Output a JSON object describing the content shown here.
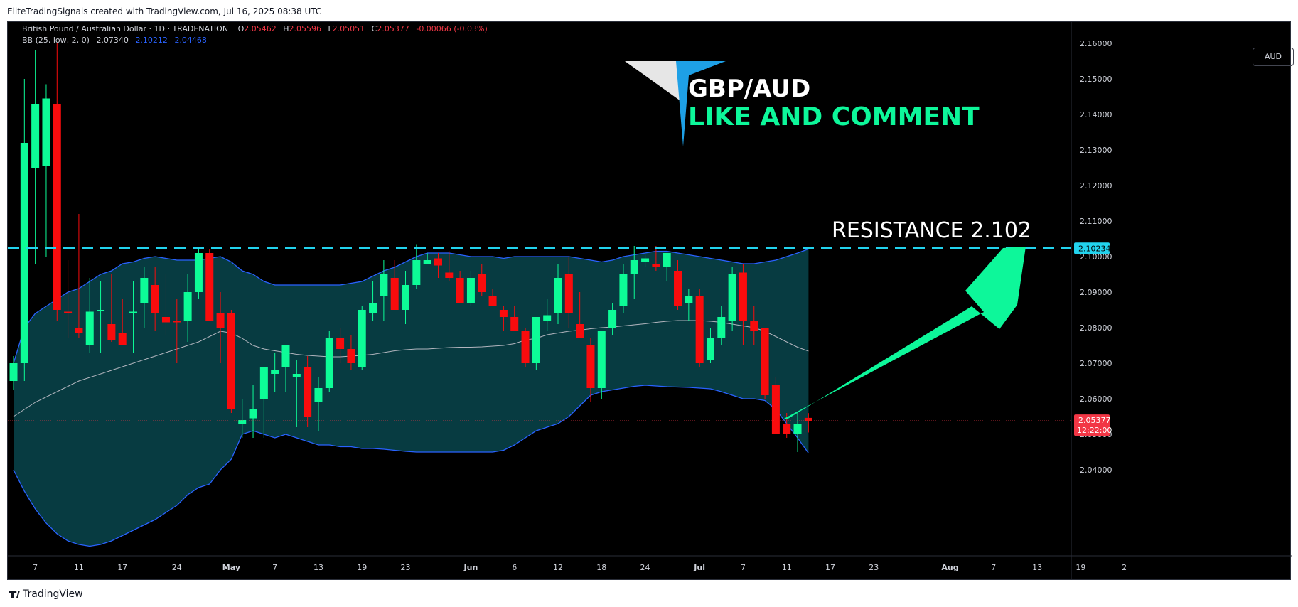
{
  "header": {
    "attribution": "EliteTradingSignals created with TradingView.com, Jul 16, 2025 08:38 UTC"
  },
  "footer": {
    "brand": "TradingView"
  },
  "legend": {
    "symbol_line": "British Pound / Australian Dollar · 1D · TRADENATION",
    "ohlc": {
      "o_label": "O",
      "o": "2.05462",
      "h_label": "H",
      "h": "2.05596",
      "l_label": "L",
      "l": "2.05051",
      "c_label": "C",
      "c": "2.05377",
      "change": "-0.00066 (-0.03%)"
    },
    "bb_label": "BB (25, low, 2, 0)",
    "bb_basis": "2.07340",
    "bb_upper": "2.10212",
    "bb_lower": "2.04468"
  },
  "currency": "AUD",
  "overlay": {
    "pair": "GBP/AUD",
    "cta": "LIKE AND COMMENT",
    "resistance_text": "RESISTANCE  2.102"
  },
  "colors": {
    "up": "#0dfc97",
    "down": "#f90c0d",
    "band_fill": "#073b41",
    "band_line": "#2962ff",
    "basis_line": "#b2b5be",
    "resistance": "#22d3ee",
    "price_label": "#f23645",
    "arrow": "#0df79a",
    "cta_text": "#0df79a"
  },
  "chart_data": {
    "type": "candlestick",
    "title": "British Pound / Australian Dollar · 1D · TRADENATION",
    "ylim": [
      2.035,
      2.165
    ],
    "y_ticks": [
      2.04,
      2.05,
      2.06,
      2.07,
      2.08,
      2.09,
      2.1,
      2.11,
      2.12,
      2.13,
      2.14,
      2.15,
      2.16
    ],
    "y_tick_labels": [
      "2.04000",
      "2.05000",
      "2.06000",
      "2.07000",
      "2.08000",
      "2.09000",
      "2.10000",
      "2.11000",
      "2.12000",
      "2.13000",
      "2.14000",
      "2.15000",
      "2.16000"
    ],
    "x_ticks": [
      {
        "label": "7",
        "bar": 2
      },
      {
        "label": "11",
        "bar": 6
      },
      {
        "label": "17",
        "bar": 10
      },
      {
        "label": "24",
        "bar": 15
      },
      {
        "label": "May",
        "bar": 20,
        "bold": true
      },
      {
        "label": "7",
        "bar": 24
      },
      {
        "label": "13",
        "bar": 28
      },
      {
        "label": "19",
        "bar": 32
      },
      {
        "label": "23",
        "bar": 36
      },
      {
        "label": "Jun",
        "bar": 42,
        "bold": true
      },
      {
        "label": "6",
        "bar": 46
      },
      {
        "label": "12",
        "bar": 50
      },
      {
        "label": "18",
        "bar": 54
      },
      {
        "label": "24",
        "bar": 58
      },
      {
        "label": "Jul",
        "bar": 63,
        "bold": true
      },
      {
        "label": "7",
        "bar": 67
      },
      {
        "label": "11",
        "bar": 71
      },
      {
        "label": "17",
        "bar": 75
      },
      {
        "label": "23",
        "bar": 79
      },
      {
        "label": "Aug",
        "bar": 86,
        "bold": true
      },
      {
        "label": "7",
        "bar": 90
      },
      {
        "label": "13",
        "bar": 94
      },
      {
        "label": "19",
        "bar": 98
      },
      {
        "label": "2",
        "bar": 102
      }
    ],
    "candles": [
      {
        "o": 2.065,
        "h": 2.072,
        "l": 2.0625,
        "c": 2.07
      },
      {
        "o": 2.07,
        "h": 2.15,
        "l": 2.065,
        "c": 2.132
      },
      {
        "o": 2.125,
        "h": 2.158,
        "l": 2.098,
        "c": 2.143
      },
      {
        "o": 2.1255,
        "h": 2.1485,
        "l": 2.1,
        "c": 2.1445
      },
      {
        "o": 2.143,
        "h": 2.16,
        "l": 2.082,
        "c": 2.085
      },
      {
        "o": 2.0845,
        "h": 2.099,
        "l": 2.077,
        "c": 2.084
      },
      {
        "o": 2.08,
        "h": 2.112,
        "l": 2.077,
        "c": 2.0785
      },
      {
        "o": 2.075,
        "h": 2.094,
        "l": 2.073,
        "c": 2.0845
      },
      {
        "o": 2.085,
        "h": 2.093,
        "l": 2.073,
        "c": 2.085
      },
      {
        "o": 2.081,
        "h": 2.095,
        "l": 2.076,
        "c": 2.0765
      },
      {
        "o": 2.0785,
        "h": 2.088,
        "l": 2.075,
        "c": 2.075
      },
      {
        "o": 2.084,
        "h": 2.093,
        "l": 2.073,
        "c": 2.0845
      },
      {
        "o": 2.087,
        "h": 2.097,
        "l": 2.08,
        "c": 2.094
      },
      {
        "o": 2.092,
        "h": 2.097,
        "l": 2.079,
        "c": 2.084
      },
      {
        "o": 2.083,
        "h": 2.095,
        "l": 2.078,
        "c": 2.0815
      },
      {
        "o": 2.082,
        "h": 2.088,
        "l": 2.07,
        "c": 2.0815
      },
      {
        "o": 2.082,
        "h": 2.095,
        "l": 2.076,
        "c": 2.09
      },
      {
        "o": 2.09,
        "h": 2.102,
        "l": 2.088,
        "c": 2.101
      },
      {
        "o": 2.101,
        "h": 2.102,
        "l": 2.082,
        "c": 2.082
      },
      {
        "o": 2.084,
        "h": 2.09,
        "l": 2.07,
        "c": 2.08
      },
      {
        "o": 2.084,
        "h": 2.085,
        "l": 2.056,
        "c": 2.057
      },
      {
        "o": 2.053,
        "h": 2.06,
        "l": 2.049,
        "c": 2.054
      },
      {
        "o": 2.0545,
        "h": 2.064,
        "l": 2.049,
        "c": 2.057
      },
      {
        "o": 2.06,
        "h": 2.069,
        "l": 2.049,
        "c": 2.069
      },
      {
        "o": 2.067,
        "h": 2.073,
        "l": 2.062,
        "c": 2.068
      },
      {
        "o": 2.069,
        "h": 2.075,
        "l": 2.062,
        "c": 2.075
      },
      {
        "o": 2.066,
        "h": 2.071,
        "l": 2.052,
        "c": 2.067
      },
      {
        "o": 2.069,
        "h": 2.072,
        "l": 2.052,
        "c": 2.055
      },
      {
        "o": 2.059,
        "h": 2.066,
        "l": 2.051,
        "c": 2.063
      },
      {
        "o": 2.063,
        "h": 2.079,
        "l": 2.062,
        "c": 2.077
      },
      {
        "o": 2.077,
        "h": 2.08,
        "l": 2.07,
        "c": 2.074
      },
      {
        "o": 2.074,
        "h": 2.078,
        "l": 2.068,
        "c": 2.07
      },
      {
        "o": 2.069,
        "h": 2.086,
        "l": 2.068,
        "c": 2.085
      },
      {
        "o": 2.084,
        "h": 2.093,
        "l": 2.082,
        "c": 2.087
      },
      {
        "o": 2.089,
        "h": 2.099,
        "l": 2.082,
        "c": 2.095
      },
      {
        "o": 2.094,
        "h": 2.099,
        "l": 2.085,
        "c": 2.085
      },
      {
        "o": 2.085,
        "h": 2.096,
        "l": 2.081,
        "c": 2.092
      },
      {
        "o": 2.092,
        "h": 2.1035,
        "l": 2.091,
        "c": 2.099
      },
      {
        "o": 2.098,
        "h": 2.101,
        "l": 2.098,
        "c": 2.099
      },
      {
        "o": 2.0995,
        "h": 2.101,
        "l": 2.094,
        "c": 2.0975
      },
      {
        "o": 2.0955,
        "h": 2.1015,
        "l": 2.093,
        "c": 2.094
      },
      {
        "o": 2.094,
        "h": 2.096,
        "l": 2.087,
        "c": 2.087
      },
      {
        "o": 2.087,
        "h": 2.096,
        "l": 2.086,
        "c": 2.094
      },
      {
        "o": 2.095,
        "h": 2.098,
        "l": 2.089,
        "c": 2.09
      },
      {
        "o": 2.089,
        "h": 2.091,
        "l": 2.086,
        "c": 2.086
      },
      {
        "o": 2.085,
        "h": 2.086,
        "l": 2.079,
        "c": 2.083
      },
      {
        "o": 2.083,
        "h": 2.086,
        "l": 2.079,
        "c": 2.079
      },
      {
        "o": 2.079,
        "h": 2.08,
        "l": 2.069,
        "c": 2.07
      },
      {
        "o": 2.07,
        "h": 2.082,
        "l": 2.068,
        "c": 2.083
      },
      {
        "o": 2.082,
        "h": 2.088,
        "l": 2.079,
        "c": 2.0835
      },
      {
        "o": 2.084,
        "h": 2.098,
        "l": 2.081,
        "c": 2.094
      },
      {
        "o": 2.095,
        "h": 2.1,
        "l": 2.08,
        "c": 2.084
      },
      {
        "o": 2.081,
        "h": 2.09,
        "l": 2.077,
        "c": 2.077
      },
      {
        "o": 2.075,
        "h": 2.077,
        "l": 2.059,
        "c": 2.063
      },
      {
        "o": 2.063,
        "h": 2.078,
        "l": 2.06,
        "c": 2.079
      },
      {
        "o": 2.08,
        "h": 2.087,
        "l": 2.078,
        "c": 2.085
      },
      {
        "o": 2.086,
        "h": 2.098,
        "l": 2.084,
        "c": 2.095
      },
      {
        "o": 2.095,
        "h": 2.103,
        "l": 2.088,
        "c": 2.099
      },
      {
        "o": 2.0985,
        "h": 2.1005,
        "l": 2.097,
        "c": 2.0995
      },
      {
        "o": 2.098,
        "h": 2.103,
        "l": 2.096,
        "c": 2.097
      },
      {
        "o": 2.097,
        "h": 2.101,
        "l": 2.093,
        "c": 2.101
      },
      {
        "o": 2.096,
        "h": 2.099,
        "l": 2.085,
        "c": 2.086
      },
      {
        "o": 2.087,
        "h": 2.091,
        "l": 2.082,
        "c": 2.089
      },
      {
        "o": 2.089,
        "h": 2.091,
        "l": 2.069,
        "c": 2.07
      },
      {
        "o": 2.071,
        "h": 2.08,
        "l": 2.07,
        "c": 2.077
      },
      {
        "o": 2.077,
        "h": 2.086,
        "l": 2.075,
        "c": 2.083
      },
      {
        "o": 2.082,
        "h": 2.097,
        "l": 2.079,
        "c": 2.095
      },
      {
        "o": 2.0955,
        "h": 2.098,
        "l": 2.075,
        "c": 2.082
      },
      {
        "o": 2.082,
        "h": 2.086,
        "l": 2.075,
        "c": 2.079
      },
      {
        "o": 2.08,
        "h": 2.08,
        "l": 2.06,
        "c": 2.061
      },
      {
        "o": 2.064,
        "h": 2.066,
        "l": 2.05,
        "c": 2.05
      },
      {
        "o": 2.053,
        "h": 2.056,
        "l": 2.049,
        "c": 2.05
      },
      {
        "o": 2.05,
        "h": 2.056,
        "l": 2.045,
        "c": 2.053
      },
      {
        "o": 2.05462,
        "h": 2.05596,
        "l": 2.05051,
        "c": 2.05377
      }
    ],
    "bb_upper": [
      2.07,
      2.08,
      2.084,
      2.086,
      2.088,
      2.09,
      2.091,
      2.093,
      2.095,
      2.096,
      2.098,
      2.0985,
      2.0995,
      2.1,
      2.0995,
      2.099,
      2.099,
      2.099,
      2.0995,
      2.1,
      2.0985,
      2.096,
      2.095,
      2.093,
      2.092,
      2.092,
      2.092,
      2.092,
      2.092,
      2.092,
      2.092,
      2.0925,
      2.093,
      2.0945,
      2.096,
      2.097,
      2.0985,
      2.1,
      2.101,
      2.101,
      2.101,
      2.1005,
      2.1,
      2.1,
      2.1,
      2.0995,
      2.1,
      2.1,
      2.1,
      2.1,
      2.1,
      2.1,
      2.0995,
      2.099,
      2.0985,
      2.099,
      2.1,
      2.1005,
      2.101,
      2.1015,
      2.1015,
      2.101,
      2.1005,
      2.1,
      2.0995,
      2.099,
      2.0985,
      2.098,
      2.098,
      2.0985,
      2.099,
      2.1,
      2.101,
      2.10212
    ],
    "bb_basis": [
      2.055,
      2.057,
      2.059,
      2.0605,
      2.062,
      2.0635,
      2.065,
      2.066,
      2.067,
      2.068,
      2.069,
      2.07,
      2.071,
      2.072,
      2.073,
      2.074,
      2.075,
      2.076,
      2.0775,
      2.079,
      2.0785,
      2.077,
      2.075,
      2.074,
      2.0735,
      2.073,
      2.0725,
      2.0722,
      2.072,
      2.0718,
      2.0718,
      2.072,
      2.0722,
      2.0725,
      2.073,
      2.0735,
      2.0738,
      2.074,
      2.074,
      2.0742,
      2.0744,
      2.0745,
      2.0745,
      2.0746,
      2.0748,
      2.075,
      2.0755,
      2.0765,
      2.077,
      2.078,
      2.0785,
      2.079,
      2.0793,
      2.0797,
      2.08,
      2.0802,
      2.0805,
      2.0808,
      2.0811,
      2.0815,
      2.0818,
      2.082,
      2.082,
      2.082,
      2.0818,
      2.0815,
      2.081,
      2.0805,
      2.08,
      2.079,
      2.0775,
      2.076,
      2.0745,
      2.0734
    ],
    "bb_lower": [
      2.04,
      2.034,
      2.029,
      2.025,
      2.022,
      2.02,
      2.019,
      2.0185,
      2.019,
      2.02,
      2.0215,
      2.023,
      2.0245,
      2.026,
      2.028,
      2.03,
      2.033,
      2.035,
      2.036,
      2.04,
      2.043,
      2.05,
      2.051,
      2.05,
      2.049,
      2.05,
      2.049,
      2.048,
      2.047,
      2.047,
      2.0465,
      2.0465,
      2.046,
      2.046,
      2.0458,
      2.0455,
      2.0452,
      2.045,
      2.045,
      2.045,
      2.045,
      2.045,
      2.045,
      2.045,
      2.045,
      2.0455,
      2.047,
      2.049,
      2.051,
      2.052,
      2.053,
      2.055,
      2.058,
      2.061,
      2.062,
      2.0625,
      2.063,
      2.0635,
      2.0638,
      2.0636,
      2.0634,
      2.0633,
      2.0632,
      2.063,
      2.0628,
      2.062,
      2.061,
      2.06,
      2.06,
      2.0595,
      2.057,
      2.053,
      2.049,
      2.04468
    ],
    "resistance_level": 2.10234,
    "resistance_label": "2.10234",
    "last_price": 2.05377,
    "last_price_label": "2.05377",
    "countdown": "12:22:00"
  }
}
